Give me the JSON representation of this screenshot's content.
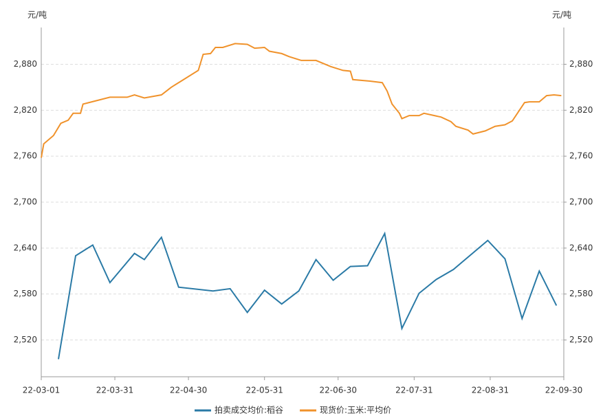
{
  "chart_data": {
    "type": "line",
    "y_label": "元/吨",
    "y2_label": "元/吨",
    "xlim": [
      "22-03-01",
      "22-09-30"
    ],
    "xticks": [
      "22-03-01",
      "22-03-31",
      "22-04-30",
      "22-05-31",
      "22-06-30",
      "22-07-31",
      "22-08-31",
      "22-09-30"
    ],
    "ylim": [
      2472,
      2928
    ],
    "yticks": [
      {
        "value": 2520,
        "label": "2,520"
      },
      {
        "value": 2580,
        "label": "2,580"
      },
      {
        "value": 2640,
        "label": "2,640"
      },
      {
        "value": 2700,
        "label": "2,700"
      },
      {
        "value": 2760,
        "label": "2,760"
      },
      {
        "value": 2820,
        "label": "2,820"
      },
      {
        "value": 2880,
        "label": "2,880"
      }
    ],
    "y2lim": [
      2472,
      2928
    ],
    "y2ticks": [
      {
        "value": 2520,
        "label": "2,520"
      },
      {
        "value": 2580,
        "label": "2,580"
      },
      {
        "value": 2640,
        "label": "2,640"
      },
      {
        "value": 2700,
        "label": "2,700"
      },
      {
        "value": 2760,
        "label": "2,760"
      },
      {
        "value": 2820,
        "label": "2,820"
      },
      {
        "value": 2880,
        "label": "2,880"
      }
    ],
    "grid": true,
    "legend": "bottom",
    "series": [
      {
        "name": "拍卖成交均价:稻谷",
        "color": "#2a7aa6",
        "x": [
          "22-03-08",
          "22-03-15",
          "22-03-22",
          "22-03-29",
          "22-04-08",
          "22-04-12",
          "22-04-19",
          "22-04-26",
          "22-05-10",
          "22-05-17",
          "22-05-24",
          "22-05-31",
          "22-06-07",
          "22-06-14",
          "22-06-21",
          "22-06-28",
          "22-07-05",
          "22-07-12",
          "22-07-19",
          "22-07-26",
          "22-08-02",
          "22-08-09",
          "22-08-16",
          "22-08-30",
          "22-09-06",
          "22-09-13",
          "22-09-20",
          "22-09-27"
        ],
        "values": [
          2495,
          2630,
          2644,
          2595,
          2633,
          2625,
          2654,
          2589,
          2584,
          2587,
          2556,
          2585,
          2567,
          2584,
          2625,
          2598,
          2616,
          2617,
          2659,
          2535,
          2581,
          2599,
          2612,
          2650,
          2626,
          2548,
          2610,
          2565
        ]
      },
      {
        "name": "现货价:玉米:平均价",
        "color": "#f0922b",
        "axis": "y2",
        "x": [
          "22-03-01",
          "22-03-02",
          "22-03-06",
          "22-03-09",
          "22-03-12",
          "22-03-14",
          "22-03-17",
          "22-03-18",
          "22-03-23",
          "22-03-29",
          "22-04-05",
          "22-04-08",
          "22-04-12",
          "22-04-19",
          "22-04-23",
          "22-04-27",
          "22-05-04",
          "22-05-06",
          "22-05-09",
          "22-05-11",
          "22-05-14",
          "22-05-19",
          "22-05-24",
          "22-05-27",
          "22-05-31",
          "22-06-02",
          "22-06-07",
          "22-06-10",
          "22-06-13",
          "22-06-15",
          "22-06-21",
          "22-06-27",
          "22-07-02",
          "22-07-05",
          "22-07-06",
          "22-07-13",
          "22-07-18",
          "22-07-20",
          "22-07-22",
          "22-07-25",
          "22-07-26",
          "22-07-29",
          "22-08-02",
          "22-08-04",
          "22-08-11",
          "22-08-15",
          "22-08-17",
          "22-08-22",
          "22-08-24",
          "22-08-29",
          "22-09-02",
          "22-09-06",
          "22-09-09",
          "22-09-14",
          "22-09-16",
          "22-09-20",
          "22-09-23",
          "22-09-26",
          "22-09-29"
        ],
        "values": [
          2758,
          2776,
          2787,
          2803,
          2807,
          2816,
          2816,
          2828,
          2832,
          2837,
          2837,
          2840,
          2836,
          2840,
          2850,
          2858,
          2872,
          2893,
          2894,
          2902,
          2902,
          2907,
          2906,
          2901,
          2902,
          2897,
          2894,
          2890,
          2887,
          2885,
          2885,
          2877,
          2872,
          2871,
          2860,
          2858,
          2856,
          2845,
          2828,
          2816,
          2809,
          2813,
          2813,
          2816,
          2811,
          2805,
          2799,
          2794,
          2789,
          2793,
          2799,
          2801,
          2806,
          2830,
          2831,
          2831,
          2839,
          2840,
          2839
        ]
      }
    ]
  }
}
